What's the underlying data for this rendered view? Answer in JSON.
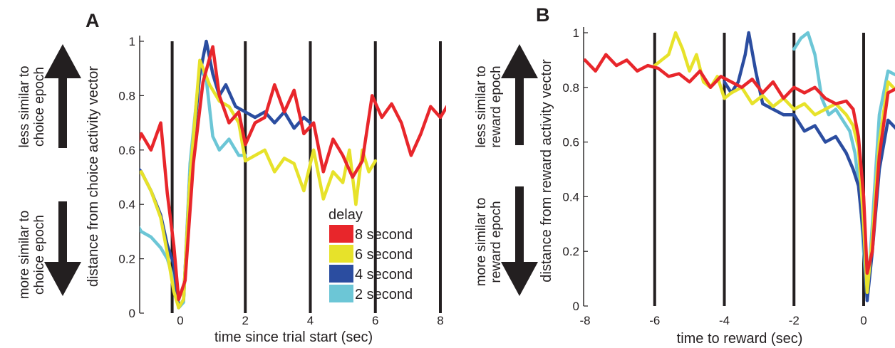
{
  "chart_data": [
    {
      "type": "line",
      "panel": "A",
      "xlabel": "time since trial start (sec)",
      "ylabel": "distance from choice activity vector",
      "xlim": [
        -1.8,
        8.2
      ],
      "ylim": [
        0,
        1
      ],
      "xticks": [
        0,
        2,
        4,
        6,
        8
      ],
      "yticks": [
        0,
        0.2,
        0.4,
        0.6,
        0.8,
        1
      ],
      "xtick_labels": [
        "0",
        "2",
        "4",
        "6",
        "8"
      ],
      "ytick_labels": [
        "0",
        "0.2",
        "0.4",
        "0.6",
        "0.8",
        "1"
      ],
      "vlines": [
        -0.25,
        2,
        4,
        6,
        8
      ],
      "annotations": {
        "up_line1": "less similar to",
        "up_line2": "choice epoch",
        "down_line1": "more similar to",
        "down_line2": "choice epoch"
      },
      "legend": {
        "title": "delay",
        "position": "bottom-right"
      },
      "series": [
        {
          "name": "8 second",
          "color": "#e8262b",
          "x": [
            -1.8,
            -1.5,
            -1.2,
            -0.9,
            -0.6,
            -0.4,
            -0.2,
            -0.05,
            0.15,
            0.4,
            0.7,
            1.0,
            1.2,
            1.5,
            1.8,
            2.0,
            2.3,
            2.6,
            2.9,
            3.2,
            3.5,
            3.8,
            4.1,
            4.4,
            4.7,
            5.0,
            5.3,
            5.6,
            5.9,
            6.2,
            6.5,
            6.8,
            7.1,
            7.4,
            7.7,
            8.0,
            8.2
          ],
          "y": [
            0.6,
            0.56,
            0.66,
            0.6,
            0.7,
            0.44,
            0.25,
            0.05,
            0.12,
            0.55,
            0.85,
            0.98,
            0.8,
            0.7,
            0.74,
            0.62,
            0.7,
            0.72,
            0.84,
            0.74,
            0.82,
            0.66,
            0.7,
            0.52,
            0.64,
            0.58,
            0.5,
            0.56,
            0.8,
            0.72,
            0.77,
            0.7,
            0.58,
            0.66,
            0.76,
            0.72,
            0.76
          ]
        },
        {
          "name": "6 second",
          "color": "#e7e22a",
          "x": [
            -1.8,
            -1.5,
            -1.2,
            -0.9,
            -0.6,
            -0.4,
            -0.2,
            -0.05,
            0.1,
            0.3,
            0.6,
            0.9,
            1.2,
            1.5,
            1.8,
            2.0,
            2.3,
            2.6,
            2.9,
            3.2,
            3.5,
            3.8,
            4.1,
            4.4,
            4.7,
            5.0,
            5.2,
            5.4,
            5.6,
            5.8,
            6.0
          ],
          "y": [
            0.42,
            0.5,
            0.52,
            0.45,
            0.35,
            0.22,
            0.08,
            0.02,
            0.05,
            0.5,
            0.93,
            0.84,
            0.78,
            0.76,
            0.7,
            0.56,
            0.58,
            0.6,
            0.52,
            0.57,
            0.55,
            0.45,
            0.6,
            0.42,
            0.52,
            0.48,
            0.6,
            0.4,
            0.6,
            0.52,
            0.56
          ]
        },
        {
          "name": "4 second",
          "color": "#2b4da0",
          "x": [
            -1.8,
            -1.5,
            -1.2,
            -0.9,
            -0.6,
            -0.4,
            -0.2,
            -0.05,
            0.1,
            0.3,
            0.6,
            0.8,
            1.0,
            1.2,
            1.4,
            1.7,
            2.0,
            2.3,
            2.6,
            2.9,
            3.2,
            3.5,
            3.8,
            4.0
          ],
          "y": [
            0.63,
            0.56,
            0.52,
            0.45,
            0.36,
            0.25,
            0.18,
            0.02,
            0.05,
            0.5,
            0.88,
            1.0,
            0.88,
            0.8,
            0.84,
            0.76,
            0.74,
            0.72,
            0.74,
            0.7,
            0.74,
            0.68,
            0.72,
            0.7
          ]
        },
        {
          "name": "2 second",
          "color": "#6cc6d6",
          "x": [
            -1.8,
            -1.5,
            -1.2,
            -0.9,
            -0.6,
            -0.4,
            -0.2,
            -0.05,
            0.1,
            0.3,
            0.6,
            0.8,
            1.0,
            1.2,
            1.5,
            1.8,
            2.0
          ],
          "y": [
            0.4,
            0.36,
            0.3,
            0.28,
            0.24,
            0.2,
            0.12,
            0.02,
            0.04,
            0.55,
            0.9,
            0.86,
            0.65,
            0.6,
            0.64,
            0.58,
            0.58
          ]
        }
      ]
    },
    {
      "type": "line",
      "panel": "B",
      "xlabel": "time to reward (sec)",
      "ylabel": "distance from reward activity vector",
      "xlim": [
        -8,
        1
      ],
      "ylim": [
        0,
        1
      ],
      "xticks": [
        -8,
        -6,
        -4,
        -2,
        0
      ],
      "yticks": [
        0,
        0.2,
        0.4,
        0.6,
        0.8,
        1
      ],
      "xtick_labels": [
        "-8",
        "-6",
        "-4",
        "-2",
        "0"
      ],
      "ytick_labels": [
        "0",
        "0.2",
        "0.4",
        "0.6",
        "0.8",
        "1"
      ],
      "vlines": [
        -6,
        -4,
        -2,
        0
      ],
      "annotations": {
        "up_line1": "less similar to",
        "up_line2": "reward epoch",
        "down_line1": "more similar to",
        "down_line2": "reward epoch"
      },
      "series": [
        {
          "name": "8 second",
          "color": "#e8262b",
          "x": [
            -8,
            -7.7,
            -7.4,
            -7.1,
            -6.8,
            -6.5,
            -6.2,
            -5.9,
            -5.6,
            -5.3,
            -5.0,
            -4.7,
            -4.4,
            -4.1,
            -3.8,
            -3.5,
            -3.2,
            -2.9,
            -2.6,
            -2.3,
            -2.0,
            -1.7,
            -1.4,
            -1.1,
            -0.8,
            -0.5,
            -0.3,
            -0.15,
            0,
            0.1,
            0.25,
            0.45,
            0.7,
            1.0
          ],
          "y": [
            0.9,
            0.86,
            0.92,
            0.88,
            0.9,
            0.86,
            0.88,
            0.87,
            0.84,
            0.85,
            0.82,
            0.86,
            0.8,
            0.84,
            0.82,
            0.8,
            0.83,
            0.78,
            0.82,
            0.76,
            0.8,
            0.78,
            0.8,
            0.76,
            0.74,
            0.75,
            0.72,
            0.62,
            0.4,
            0.12,
            0.2,
            0.55,
            0.78,
            0.8
          ]
        },
        {
          "name": "6 second",
          "color": "#e7e22a",
          "x": [
            -6,
            -5.8,
            -5.6,
            -5.4,
            -5.2,
            -5.0,
            -4.8,
            -4.6,
            -4.4,
            -4.2,
            -4.0,
            -3.8,
            -3.5,
            -3.2,
            -2.9,
            -2.6,
            -2.3,
            -2.0,
            -1.7,
            -1.4,
            -1.1,
            -0.8,
            -0.5,
            -0.3,
            -0.15,
            0,
            0.1,
            0.25,
            0.45,
            0.7,
            1.0
          ],
          "y": [
            0.88,
            0.9,
            0.92,
            1.0,
            0.94,
            0.86,
            0.92,
            0.82,
            0.8,
            0.84,
            0.76,
            0.78,
            0.8,
            0.74,
            0.77,
            0.73,
            0.76,
            0.72,
            0.74,
            0.7,
            0.72,
            0.74,
            0.7,
            0.66,
            0.58,
            0.3,
            0.05,
            0.25,
            0.6,
            0.82,
            0.78
          ]
        },
        {
          "name": "4 second",
          "color": "#2b4da0",
          "x": [
            -4,
            -3.8,
            -3.6,
            -3.4,
            -3.3,
            -3.1,
            -2.9,
            -2.6,
            -2.3,
            -2.0,
            -1.7,
            -1.4,
            -1.1,
            -0.8,
            -0.5,
            -0.3,
            -0.15,
            0,
            0.1,
            0.25,
            0.45,
            0.7,
            1.0
          ],
          "y": [
            0.82,
            0.78,
            0.82,
            0.92,
            1.0,
            0.86,
            0.74,
            0.72,
            0.7,
            0.7,
            0.64,
            0.66,
            0.6,
            0.62,
            0.56,
            0.5,
            0.44,
            0.25,
            0.02,
            0.2,
            0.5,
            0.68,
            0.64
          ]
        },
        {
          "name": "2 second",
          "color": "#6cc6d6",
          "x": [
            -2,
            -1.8,
            -1.6,
            -1.4,
            -1.2,
            -1.0,
            -0.8,
            -0.6,
            -0.4,
            -0.25,
            -0.1,
            0,
            0.1,
            0.25,
            0.45,
            0.7,
            1.0
          ],
          "y": [
            0.94,
            0.98,
            1.0,
            0.92,
            0.76,
            0.7,
            0.72,
            0.68,
            0.64,
            0.56,
            0.4,
            0.2,
            0.02,
            0.3,
            0.7,
            0.86,
            0.84
          ]
        }
      ]
    }
  ]
}
